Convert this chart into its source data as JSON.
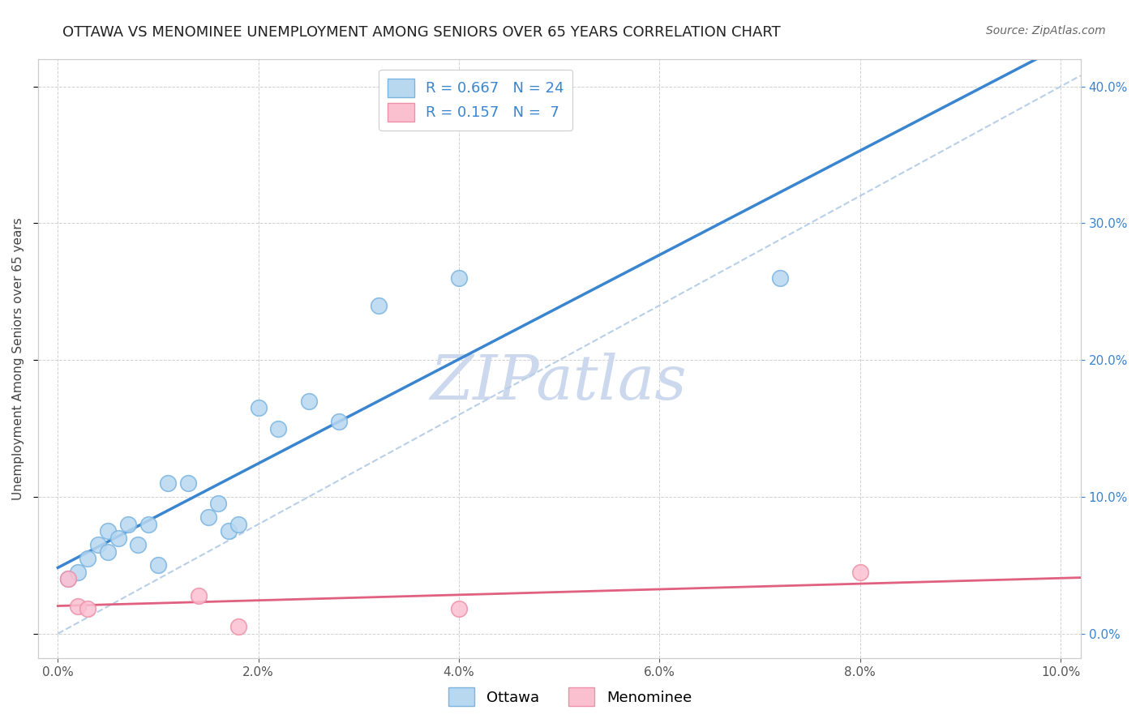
{
  "title": "OTTAWA VS MENOMINEE UNEMPLOYMENT AMONG SENIORS OVER 65 YEARS CORRELATION CHART",
  "source": "Source: ZipAtlas.com",
  "ylabel": "Unemployment Among Seniors over 65 years",
  "xlabel": "",
  "xlim": [
    -0.002,
    0.102
  ],
  "ylim": [
    -0.018,
    0.42
  ],
  "xticks": [
    0.0,
    0.02,
    0.04,
    0.06,
    0.08,
    0.1
  ],
  "yticks": [
    0.0,
    0.1,
    0.2,
    0.3,
    0.4
  ],
  "ottawa_x": [
    0.001,
    0.002,
    0.003,
    0.004,
    0.005,
    0.005,
    0.006,
    0.007,
    0.008,
    0.009,
    0.01,
    0.011,
    0.013,
    0.015,
    0.016,
    0.017,
    0.018,
    0.02,
    0.022,
    0.025,
    0.028,
    0.032,
    0.04,
    0.072
  ],
  "ottawa_y": [
    0.04,
    0.045,
    0.055,
    0.065,
    0.06,
    0.075,
    0.07,
    0.08,
    0.065,
    0.08,
    0.05,
    0.11,
    0.11,
    0.085,
    0.095,
    0.075,
    0.08,
    0.165,
    0.15,
    0.17,
    0.155,
    0.24,
    0.26,
    0.26
  ],
  "menominee_x": [
    0.001,
    0.002,
    0.003,
    0.014,
    0.018,
    0.04,
    0.08
  ],
  "menominee_y": [
    0.04,
    0.02,
    0.018,
    0.028,
    0.005,
    0.018,
    0.045
  ],
  "ottawa_R": 0.667,
  "ottawa_N": 24,
  "menominee_R": 0.157,
  "menominee_N": 7,
  "ottawa_color": "#7ab5e0",
  "ottawa_scatter_color": "#b8d8f0",
  "menominee_color": "#f090a8",
  "menominee_scatter_color": "#fbc0d0",
  "regression_line_color_ottawa": "#3a85d0",
  "regression_line_color_menominee": "#e06080",
  "diagonal_line_color": "#b8cfe8",
  "watermark_color": "#ccd8ee",
  "background_color": "#ffffff",
  "legend_box_color_ottawa": "#b8d8f0",
  "legend_box_color_menominee": "#fbc0d0",
  "title_fontsize": 13,
  "source_fontsize": 10,
  "legend_fontsize": 13,
  "tick_fontsize": 11,
  "ylabel_fontsize": 11
}
